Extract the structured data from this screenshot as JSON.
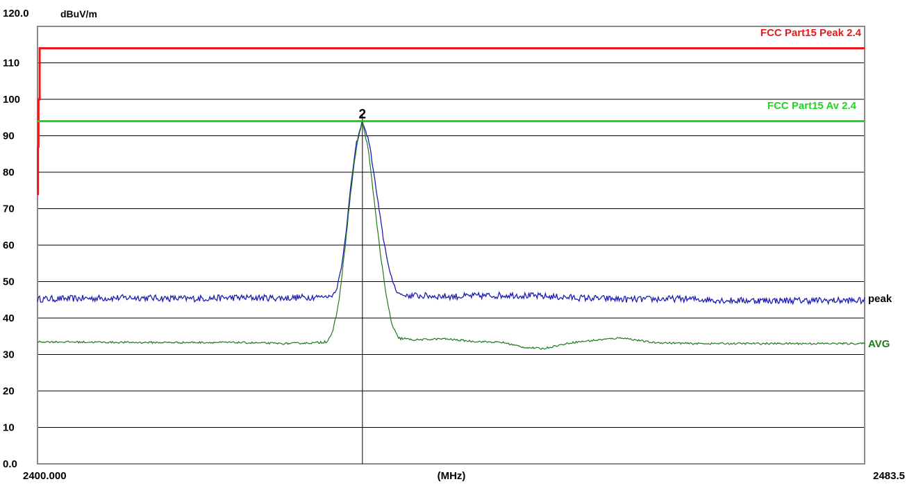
{
  "chart_data": {
    "type": "line",
    "ylabel": "dBuV/m",
    "xlabel": "(MHz)",
    "xlim": [
      2400.0,
      2483.5
    ],
    "ylim": [
      0,
      120
    ],
    "x_tick_labels": [
      "2400.000",
      "2483.5"
    ],
    "y_tick_labels": [
      "120.0",
      "110",
      "100",
      "90",
      "80",
      "70",
      "60",
      "50",
      "40",
      "30",
      "20",
      "10",
      "0.0"
    ],
    "grid": true,
    "marker": {
      "label": "2",
      "x": 2432.8,
      "y": 94
    },
    "limit_lines": [
      {
        "name": "FCC Part15 Peak 2.4",
        "color": "#e8181b",
        "points": [
          [
            2400.0,
            74
          ],
          [
            2400.05,
            74
          ],
          [
            2400.05,
            87
          ],
          [
            2400.1,
            87
          ],
          [
            2400.1,
            100
          ],
          [
            2400.22,
            100
          ],
          [
            2400.22,
            114
          ],
          [
            2483.5,
            114
          ]
        ]
      },
      {
        "name": "FCC Part15 Av 2.4",
        "color": "#22d422",
        "points": [
          [
            2400.0,
            94
          ],
          [
            2483.5,
            94
          ]
        ]
      }
    ],
    "series": [
      {
        "name": "peak",
        "color": "#1c1cb4",
        "baseline_left": 45.3,
        "baseline_right": 45.3,
        "points": [
          [
            2400.0,
            45.2
          ],
          [
            2405.0,
            45.4
          ],
          [
            2410.0,
            45.6
          ],
          [
            2415.0,
            45.3
          ],
          [
            2420.0,
            45.6
          ],
          [
            2425.0,
            45.5
          ],
          [
            2428.0,
            45.8
          ],
          [
            2429.7,
            46.0
          ],
          [
            2430.2,
            48
          ],
          [
            2430.7,
            54
          ],
          [
            2431.2,
            65
          ],
          [
            2431.7,
            78
          ],
          [
            2432.2,
            88
          ],
          [
            2432.8,
            94
          ],
          [
            2433.5,
            88
          ],
          [
            2434.2,
            75
          ],
          [
            2434.9,
            62
          ],
          [
            2435.6,
            52
          ],
          [
            2436.3,
            47
          ],
          [
            2437.0,
            46.2
          ],
          [
            2442.0,
            45.9
          ],
          [
            2448.0,
            46.3
          ],
          [
            2454.0,
            45.6
          ],
          [
            2460.0,
            45.1
          ],
          [
            2465.0,
            45.3
          ],
          [
            2470.0,
            44.8
          ],
          [
            2472.5,
            44.8
          ]
        ]
      },
      {
        "name": "AVG",
        "color": "#1e781e",
        "points": [
          [
            2400.0,
            33.5
          ],
          [
            2410.0,
            33.3
          ],
          [
            2420.0,
            33.3
          ],
          [
            2425.0,
            33.0
          ],
          [
            2428.0,
            33.2
          ],
          [
            2429.2,
            33.6
          ],
          [
            2429.8,
            36
          ],
          [
            2430.4,
            44
          ],
          [
            2431.0,
            58
          ],
          [
            2431.6,
            74
          ],
          [
            2432.2,
            87
          ],
          [
            2432.8,
            94
          ],
          [
            2433.4,
            86
          ],
          [
            2434.0,
            72
          ],
          [
            2434.6,
            58
          ],
          [
            2435.2,
            46
          ],
          [
            2435.8,
            38
          ],
          [
            2436.4,
            34.5
          ],
          [
            2438.0,
            34.0
          ],
          [
            2441.0,
            34.3
          ],
          [
            2444.0,
            33.6
          ],
          [
            2447.0,
            33.3
          ],
          [
            2449.0,
            32.0
          ],
          [
            2451.0,
            31.6
          ],
          [
            2454.0,
            33.3
          ],
          [
            2457.0,
            34.1
          ],
          [
            2459.0,
            34.6
          ],
          [
            2462.0,
            33.3
          ],
          [
            2466.0,
            33.0
          ],
          [
            2472.5,
            33.0
          ]
        ]
      }
    ]
  }
}
